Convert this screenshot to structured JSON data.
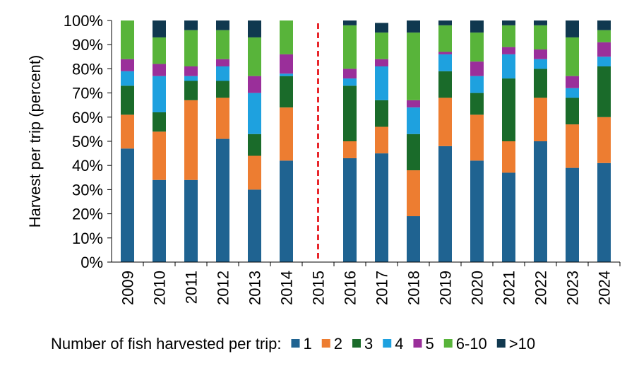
{
  "chart_data": {
    "type": "bar",
    "stacked": true,
    "ylabel": "Harvest per trip (percent)",
    "xlabel": "",
    "ylim": [
      0,
      100
    ],
    "yticks": [
      "0%",
      "10%",
      "20%",
      "30%",
      "40%",
      "50%",
      "60%",
      "70%",
      "80%",
      "90%",
      "100%"
    ],
    "categories": [
      "2009",
      "2010",
      "2011",
      "2012",
      "2013",
      "2014",
      "2015",
      "2016",
      "2017",
      "2018",
      "2019",
      "2020",
      "2021",
      "2022",
      "2023",
      "2024"
    ],
    "divider_category": "2015",
    "legend_title": "Number of fish harvested per trip:",
    "series": [
      {
        "name": "1",
        "color": "#1f6391",
        "values": [
          47,
          34,
          34,
          51,
          30,
          42,
          null,
          43,
          45,
          19,
          48,
          42,
          37,
          50,
          39,
          41
        ]
      },
      {
        "name": "2",
        "color": "#ed7d31",
        "values": [
          14,
          20,
          33,
          17,
          14,
          22,
          null,
          7,
          11,
          19,
          20,
          19,
          13,
          18,
          18,
          19
        ]
      },
      {
        "name": "3",
        "color": "#1a6b2a",
        "values": [
          12,
          8,
          8,
          7,
          9,
          13,
          null,
          23,
          11,
          15,
          11,
          9,
          26,
          12,
          11,
          21
        ]
      },
      {
        "name": "4",
        "color": "#1ea1df",
        "values": [
          6,
          15,
          2,
          6,
          17,
          1,
          null,
          3,
          14,
          11,
          7,
          7,
          10,
          4,
          4,
          4
        ]
      },
      {
        "name": "5",
        "color": "#9a2f9a",
        "values": [
          5,
          5,
          4,
          3,
          7,
          8,
          null,
          4,
          3,
          3,
          1,
          6,
          3,
          4,
          5,
          6
        ]
      },
      {
        "name": "6-10",
        "color": "#58b43a",
        "values": [
          16,
          11,
          15,
          12,
          16,
          14,
          null,
          18,
          11,
          28,
          11,
          12,
          9,
          10,
          16,
          5
        ]
      },
      {
        "name": ">10",
        "color": "#10384f",
        "values": [
          0,
          7,
          4,
          4,
          7,
          0,
          null,
          2,
          4,
          5,
          2,
          5,
          2,
          2,
          7,
          4
        ]
      }
    ]
  }
}
